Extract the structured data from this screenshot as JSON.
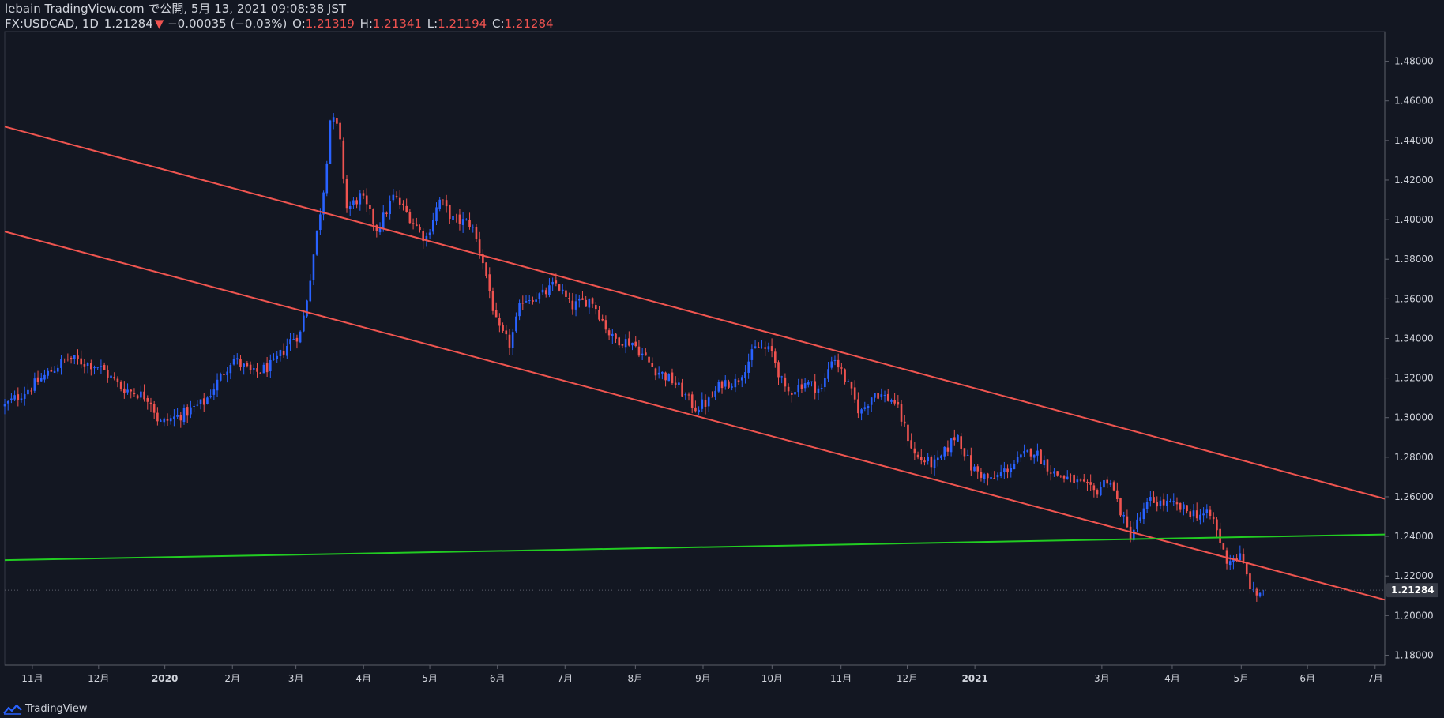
{
  "header": {
    "publish_line": "lebain TradingView.com で公開, 5月 13, 2021 09:08:38 JST",
    "symbol": "FX:USDCAD, 1D",
    "price": "1.21284",
    "change_arrow": "▼",
    "change": "−0.00035 (−0.03%)",
    "o_label": "O:",
    "o_value": "1.21319",
    "h_label": "H:",
    "h_value": "1.21341",
    "l_label": "L:",
    "l_value": "1.21194",
    "c_label": "C:",
    "c_value": "1.21284"
  },
  "footer": {
    "brand": "TradingView"
  },
  "colors": {
    "bg": "#131722",
    "up": "#2962ff",
    "down": "#ef5350",
    "trend": "#f05550",
    "support": "#22cc22",
    "text": "#d1d4dc"
  },
  "chart_data": {
    "type": "candlestick",
    "title": "FX:USDCAD, 1D",
    "ylim": [
      1.175,
      1.495
    ],
    "y_ticks": [
      "1.18000",
      "1.20000",
      "1.22000",
      "1.24000",
      "1.26000",
      "1.28000",
      "1.30000",
      "1.32000",
      "1.34000",
      "1.36000",
      "1.38000",
      "1.40000",
      "1.42000",
      "1.44000",
      "1.46000",
      "1.48000"
    ],
    "x_ticks": [
      {
        "label": "11月",
        "t": 0.02
      },
      {
        "label": "12月",
        "t": 0.068
      },
      {
        "label": "2020",
        "t": 0.116
      },
      {
        "label": "2月",
        "t": 0.165
      },
      {
        "label": "3月",
        "t": 0.211
      },
      {
        "label": "4月",
        "t": 0.26
      },
      {
        "label": "5月",
        "t": 0.308
      },
      {
        "label": "6月",
        "t": 0.357
      },
      {
        "label": "7月",
        "t": 0.406
      },
      {
        "label": "8月",
        "t": 0.457
      },
      {
        "label": "9月",
        "t": 0.506
      },
      {
        "label": "10月",
        "t": 0.556
      },
      {
        "label": "11月",
        "t": 0.606
      },
      {
        "label": "12月",
        "t": 0.654
      },
      {
        "label": "2021",
        "t": 0.703
      },
      {
        "label": "3月",
        "t": 0.795
      },
      {
        "label": "4月",
        "t": 0.846
      },
      {
        "label": "5月",
        "t": 0.896
      },
      {
        "label": "6月",
        "t": 0.944
      },
      {
        "label": "7月",
        "t": 0.993
      }
    ],
    "last_price": 1.21284,
    "last_price_label": "1.21284",
    "price_path": [
      [
        0.0,
        1.306
      ],
      [
        0.02,
        1.316
      ],
      [
        0.045,
        1.33
      ],
      [
        0.068,
        1.326
      ],
      [
        0.085,
        1.315
      ],
      [
        0.105,
        1.31
      ],
      [
        0.112,
        1.297
      ],
      [
        0.13,
        1.302
      ],
      [
        0.145,
        1.308
      ],
      [
        0.165,
        1.33
      ],
      [
        0.18,
        1.322
      ],
      [
        0.195,
        1.327
      ],
      [
        0.208,
        1.34
      ],
      [
        0.214,
        1.342
      ],
      [
        0.218,
        1.356
      ],
      [
        0.225,
        1.388
      ],
      [
        0.232,
        1.42
      ],
      [
        0.236,
        1.452
      ],
      [
        0.242,
        1.445
      ],
      [
        0.248,
        1.405
      ],
      [
        0.258,
        1.412
      ],
      [
        0.27,
        1.395
      ],
      [
        0.282,
        1.412
      ],
      [
        0.295,
        1.4
      ],
      [
        0.305,
        1.39
      ],
      [
        0.315,
        1.41
      ],
      [
        0.325,
        1.4
      ],
      [
        0.338,
        1.398
      ],
      [
        0.347,
        1.378
      ],
      [
        0.357,
        1.345
      ],
      [
        0.366,
        1.337
      ],
      [
        0.375,
        1.36
      ],
      [
        0.39,
        1.362
      ],
      [
        0.4,
        1.368
      ],
      [
        0.41,
        1.356
      ],
      [
        0.425,
        1.36
      ],
      [
        0.44,
        1.34
      ],
      [
        0.455,
        1.338
      ],
      [
        0.47,
        1.325
      ],
      [
        0.485,
        1.318
      ],
      [
        0.5,
        1.305
      ],
      [
        0.51,
        1.308
      ],
      [
        0.52,
        1.318
      ],
      [
        0.53,
        1.318
      ],
      [
        0.545,
        1.336
      ],
      [
        0.556,
        1.333
      ],
      [
        0.566,
        1.312
      ],
      [
        0.58,
        1.318
      ],
      [
        0.592,
        1.314
      ],
      [
        0.6,
        1.332
      ],
      [
        0.61,
        1.318
      ],
      [
        0.62,
        1.302
      ],
      [
        0.63,
        1.313
      ],
      [
        0.645,
        1.308
      ],
      [
        0.66,
        1.28
      ],
      [
        0.675,
        1.276
      ],
      [
        0.69,
        1.292
      ],
      [
        0.7,
        1.275
      ],
      [
        0.715,
        1.268
      ],
      [
        0.73,
        1.276
      ],
      [
        0.745,
        1.284
      ],
      [
        0.76,
        1.272
      ],
      [
        0.775,
        1.268
      ],
      [
        0.79,
        1.262
      ],
      [
        0.8,
        1.27
      ],
      [
        0.815,
        1.24
      ],
      [
        0.83,
        1.258
      ],
      [
        0.845,
        1.256
      ],
      [
        0.86,
        1.252
      ],
      [
        0.875,
        1.25
      ],
      [
        0.885,
        1.228
      ],
      [
        0.895,
        1.23
      ],
      [
        0.905,
        1.21
      ],
      [
        0.912,
        1.2128
      ]
    ],
    "lines": [
      {
        "name": "upper-channel",
        "color": "red",
        "from": [
          0.0,
          1.447
        ],
        "to": [
          1.0,
          1.259
        ]
      },
      {
        "name": "lower-channel",
        "color": "red",
        "from": [
          0.0,
          1.394
        ],
        "to": [
          1.0,
          1.208
        ]
      },
      {
        "name": "support-line",
        "color": "green",
        "from": [
          0.0,
          1.228
        ],
        "to": [
          1.0,
          1.241
        ]
      }
    ]
  }
}
